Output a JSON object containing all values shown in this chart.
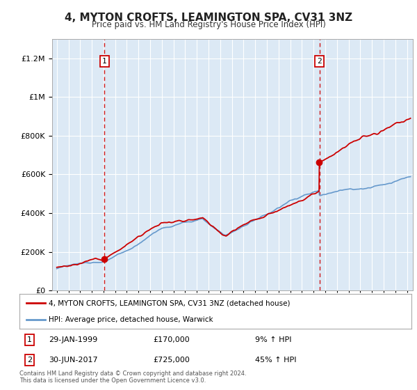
{
  "title": "4, MYTON CROFTS, LEAMINGTON SPA, CV31 3NZ",
  "subtitle": "Price paid vs. HM Land Registry's House Price Index (HPI)",
  "background_color": "#ffffff",
  "plot_bg_color": "#dce9f5",
  "grid_color": "#ffffff",
  "legend_label_red": "4, MYTON CROFTS, LEAMINGTON SPA, CV31 3NZ (detached house)",
  "legend_label_blue": "HPI: Average price, detached house, Warwick",
  "sale1_date_num": 1999.08,
  "sale1_price": 170000,
  "sale2_date_num": 2017.5,
  "sale2_price": 725000,
  "footer": "Contains HM Land Registry data © Crown copyright and database right 2024.\nThis data is licensed under the Open Government Licence v3.0.",
  "ylim": [
    0,
    1300000
  ],
  "xlim_start": 1994.6,
  "xlim_end": 2025.5,
  "red_color": "#cc0000",
  "blue_color": "#6699cc",
  "marker_color": "#cc0000"
}
